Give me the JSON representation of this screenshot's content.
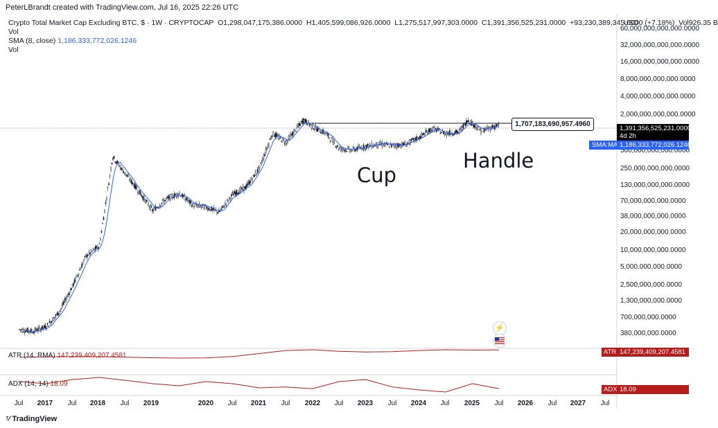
{
  "header": {
    "credit": "PeterLBrandt created with TradingView.com, Jul 16, 2025 22:26 UTC",
    "symbol_line": "Crypto Total Market Cap Excluding BTC, $ · 1W · CRYPTOCAP",
    "ohlc": {
      "open_label": "O",
      "open": "1,298,047,175,386.0000",
      "high_label": "H",
      "high": "1,405,599,086,926.0000",
      "low_label": "L",
      "low": "1,275,517,997,303.0000",
      "close_label": "C",
      "close": "1,391,356,525,231.0000",
      "change": "+93,230,389,345.0000 (+7.18%)",
      "vol_label": "Vol",
      "vol": "926.35 B"
    },
    "vol_line1": "Vol",
    "sma_line": "SMA (8, close)",
    "sma_value": "1,186,333,772,026.1246",
    "vol_line2": "Vol"
  },
  "axis": {
    "currency": "USD",
    "y_ticks": [
      "60,000,000,000,000.0000",
      "32,000,000,000,000.0000",
      "16,000,000,000,000.0000",
      "8,000,000,000,000.0000",
      "4,000,000,000,000.0000",
      "2,000,000,000,000.0000",
      "500,000,000,000.0000",
      "250,000,000,000.0000",
      "130,000,000,000.0000",
      "70,000,000,000.0000",
      "38,000,000,000.0000",
      "20,000,000,000.0000",
      "10,000,000,000.0000",
      "5,000,000,000.0000",
      "2,500,000,000.0000",
      "1,300,000,000.0000",
      "700,000,000.0000",
      "380,000,000.0000"
    ],
    "x_ticks": [
      "Jul",
      "2017",
      "Jul",
      "2018",
      "Jul",
      "2019",
      "2020",
      "Jul",
      "2021",
      "Jul",
      "2022",
      "Jul",
      "2023",
      "Jul",
      "2024",
      "Jul",
      "2025",
      "Jul",
      "2026",
      "Jul",
      "2027",
      "Jul"
    ]
  },
  "price_tag": {
    "value": "1,391,356,525,231.0000",
    "countdown": "4d 2h"
  },
  "sma_tag": {
    "label": "SMA:MA",
    "value": "1,186,333,772,026.1246"
  },
  "annotations": {
    "resistance": "1,707,183,690,957.4960",
    "cup": "Cup",
    "handle": "Handle"
  },
  "indicators": {
    "atr": {
      "name": "ATR (14, RMA)",
      "value": "147,239,409,207.4581",
      "tag": "ATR"
    },
    "adx": {
      "name": "ADX (14, 14)",
      "value": "18.09",
      "tag": "ADX"
    }
  },
  "icons": [
    "lightning-icon",
    "us-flag-icon",
    "tradingview-logo-icon"
  ],
  "footer": {
    "brand": "TradingView"
  },
  "colors": {
    "candle": "#131722",
    "sma": "#2962ff",
    "indicator": "#b71c1c",
    "price_tag_bg": "#000000"
  },
  "chart_data": {
    "type": "line",
    "title": "Crypto Total Market Cap Excluding BTC, $ · 1W · CRYPTOCAP",
    "y_scale": "log",
    "x": [
      "2016-07",
      "2016-10",
      "2017-01",
      "2017-04",
      "2017-07",
      "2017-10",
      "2018-01",
      "2018-04",
      "2018-07",
      "2018-10",
      "2019-01",
      "2019-04",
      "2019-07",
      "2019-10",
      "2020-01",
      "2020-04",
      "2020-07",
      "2020-10",
      "2021-01",
      "2021-04",
      "2021-07",
      "2021-11",
      "2022-01",
      "2022-04",
      "2022-07",
      "2022-10",
      "2023-01",
      "2023-04",
      "2023-07",
      "2023-10",
      "2024-01",
      "2024-04",
      "2024-07",
      "2024-10",
      "2024-12",
      "2025-03",
      "2025-07"
    ],
    "series": [
      {
        "name": "Crypto Total Market Cap Excluding BTC",
        "values": [
          450000000,
          420000000,
          500000000,
          900000000,
          2500000000,
          8000000000,
          12000000000,
          400000000000,
          200000000000,
          100000000000,
          48000000000,
          75000000000,
          95000000000,
          60000000000,
          55000000000,
          45000000000,
          90000000000,
          120000000000,
          250000000000,
          1000000000000,
          700000000000,
          1707183690957,
          1300000000000,
          1000000000000,
          550000000000,
          520000000000,
          600000000000,
          650000000000,
          620000000000,
          650000000000,
          850000000000,
          1200000000000,
          1000000000000,
          1050000000000,
          1700000000000,
          1100000000000,
          1391356525231
        ]
      }
    ],
    "indicators": [
      {
        "name": "ATR (14, RMA)",
        "values": [
          50000000000,
          55000000000,
          60000000000,
          58000000000,
          52000000000,
          45000000000,
          40000000000,
          42000000000,
          60000000000,
          100000000000,
          140000000000,
          150000000000,
          130000000000,
          120000000000,
          125000000000,
          140000000000,
          150000000000,
          145000000000,
          147239409207
        ]
      },
      {
        "name": "ADX (14, 14)",
        "values": [
          35,
          30,
          40,
          45,
          38,
          30,
          25,
          35,
          30,
          20,
          22,
          18,
          35,
          40,
          22,
          15,
          10,
          30,
          18.09
        ]
      }
    ]
  }
}
